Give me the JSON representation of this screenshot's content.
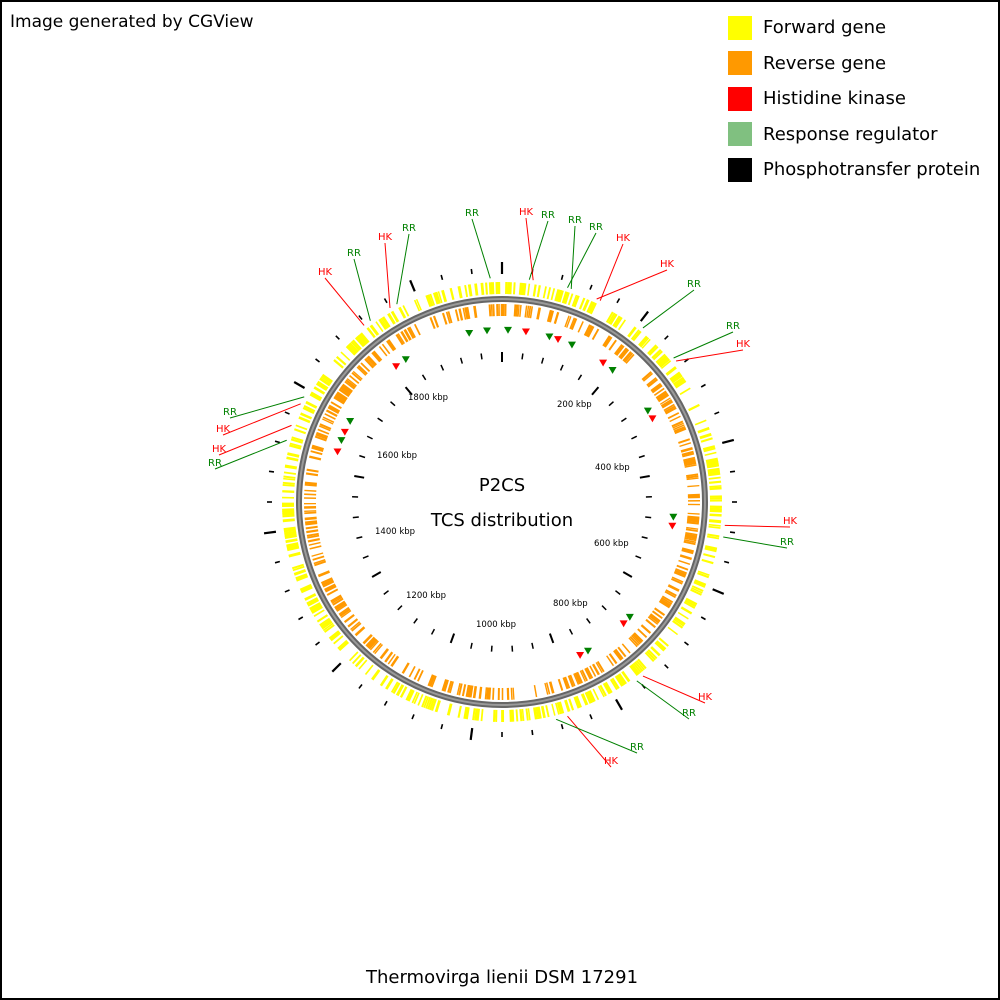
{
  "credit": "Image generated by CGView",
  "legend": [
    {
      "label": "Forward gene",
      "color": "#ffff00"
    },
    {
      "label": "Reverse gene",
      "color": "#ff9900"
    },
    {
      "label": "Histidine kinase",
      "color": "#ff0000"
    },
    {
      "label": "Response regulator",
      "color": "#80c080"
    },
    {
      "label": "Phosphotransfer protein",
      "color": "#000000"
    }
  ],
  "center": {
    "line1": "P2CS",
    "line2": "TCS distribution"
  },
  "organism": "Thermovirga lienii DSM 17291",
  "colors": {
    "forward": "#ffff00",
    "reverse": "#ff9900",
    "hk": "#ff0000",
    "rr": "#008000",
    "backbone": "#777777"
  },
  "genome": {
    "tick_labels": [
      "200 kbp",
      "400 kbp",
      "600 kbp",
      "800 kbp",
      "1000 kbp",
      "1200 kbp",
      "1400 kbp",
      "1600 kbp",
      "1800 kbp"
    ]
  },
  "tcs_labels": [
    {
      "text": "RR",
      "type": "rr"
    },
    {
      "text": "HK",
      "type": "hk"
    },
    {
      "text": "RR",
      "type": "rr"
    },
    {
      "text": "HK",
      "type": "hk"
    },
    {
      "text": "RR",
      "type": "rr"
    },
    {
      "text": "RR",
      "type": "rr"
    },
    {
      "text": "HK",
      "type": "hk"
    },
    {
      "text": "RR",
      "type": "rr"
    },
    {
      "text": "RR",
      "type": "rr"
    },
    {
      "text": "HK",
      "type": "hk"
    },
    {
      "text": "HK",
      "type": "hk"
    },
    {
      "text": "RR",
      "type": "rr"
    },
    {
      "text": "HK",
      "type": "hk"
    },
    {
      "text": "RR",
      "type": "rr"
    },
    {
      "text": "RR",
      "type": "rr"
    },
    {
      "text": "HK",
      "type": "hk"
    },
    {
      "text": "RR",
      "type": "rr"
    },
    {
      "text": "HK",
      "type": "hk"
    },
    {
      "text": "HK",
      "type": "hk"
    },
    {
      "text": "RR",
      "type": "rr"
    },
    {
      "text": "RR",
      "type": "rr"
    },
    {
      "text": "HK",
      "type": "hk"
    },
    {
      "text": "HK",
      "type": "hk"
    },
    {
      "text": "RR",
      "type": "rr"
    }
  ]
}
